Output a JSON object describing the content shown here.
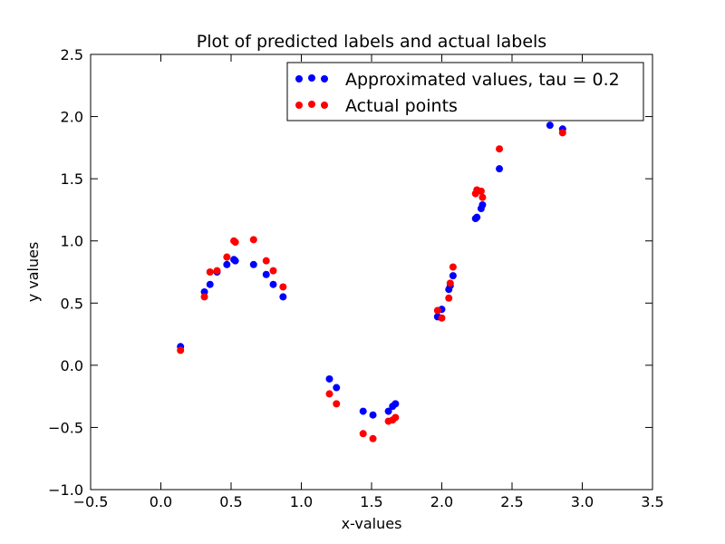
{
  "chart_data": {
    "type": "scatter",
    "title": "Plot of predicted labels and actual labels",
    "xlabel": "x-values",
    "ylabel": "y values",
    "xlim": [
      -0.5,
      3.5
    ],
    "ylim": [
      -1.0,
      2.5
    ],
    "xticks": [
      "−0.5",
      "0.0",
      "0.5",
      "1.0",
      "1.5",
      "2.0",
      "2.5",
      "3.0",
      "3.5"
    ],
    "yticks": [
      "−1.0",
      "−0.5",
      "0.0",
      "0.5",
      "1.0",
      "1.5",
      "2.0",
      "2.5"
    ],
    "grid": false,
    "legend_position": "top-right",
    "series": [
      {
        "name": "Approximated values, tau = 0.2",
        "color": "#0000ff",
        "points": [
          [
            0.14,
            0.15
          ],
          [
            0.31,
            0.59
          ],
          [
            0.35,
            0.65
          ],
          [
            0.4,
            0.75
          ],
          [
            0.47,
            0.81
          ],
          [
            0.52,
            0.85
          ],
          [
            0.53,
            0.84
          ],
          [
            0.66,
            0.81
          ],
          [
            0.75,
            0.73
          ],
          [
            0.8,
            0.65
          ],
          [
            0.87,
            0.55
          ],
          [
            1.2,
            -0.11
          ],
          [
            1.25,
            -0.18
          ],
          [
            1.44,
            -0.37
          ],
          [
            1.51,
            -0.4
          ],
          [
            1.62,
            -0.37
          ],
          [
            1.65,
            -0.33
          ],
          [
            1.67,
            -0.31
          ],
          [
            1.97,
            0.39
          ],
          [
            2.0,
            0.45
          ],
          [
            2.05,
            0.61
          ],
          [
            2.06,
            0.64
          ],
          [
            2.08,
            0.72
          ],
          [
            2.24,
            1.18
          ],
          [
            2.25,
            1.19
          ],
          [
            2.28,
            1.26
          ],
          [
            2.29,
            1.29
          ],
          [
            2.41,
            1.58
          ],
          [
            2.77,
            1.93
          ],
          [
            2.86,
            1.9
          ]
        ]
      },
      {
        "name": "Actual points",
        "color": "#ff0000",
        "points": [
          [
            0.14,
            0.12
          ],
          [
            0.31,
            0.55
          ],
          [
            0.35,
            0.75
          ],
          [
            0.4,
            0.76
          ],
          [
            0.47,
            0.87
          ],
          [
            0.52,
            1.0
          ],
          [
            0.53,
            0.99
          ],
          [
            0.66,
            1.01
          ],
          [
            0.75,
            0.84
          ],
          [
            0.8,
            0.76
          ],
          [
            0.87,
            0.63
          ],
          [
            1.2,
            -0.23
          ],
          [
            1.25,
            -0.31
          ],
          [
            1.44,
            -0.55
          ],
          [
            1.51,
            -0.59
          ],
          [
            1.62,
            -0.45
          ],
          [
            1.65,
            -0.44
          ],
          [
            1.67,
            -0.42
          ],
          [
            1.97,
            0.44
          ],
          [
            2.0,
            0.38
          ],
          [
            2.05,
            0.54
          ],
          [
            2.06,
            0.66
          ],
          [
            2.08,
            0.79
          ],
          [
            2.24,
            1.38
          ],
          [
            2.25,
            1.41
          ],
          [
            2.28,
            1.4
          ],
          [
            2.29,
            1.35
          ],
          [
            2.41,
            1.74
          ],
          [
            2.86,
            1.87
          ]
        ]
      }
    ]
  }
}
